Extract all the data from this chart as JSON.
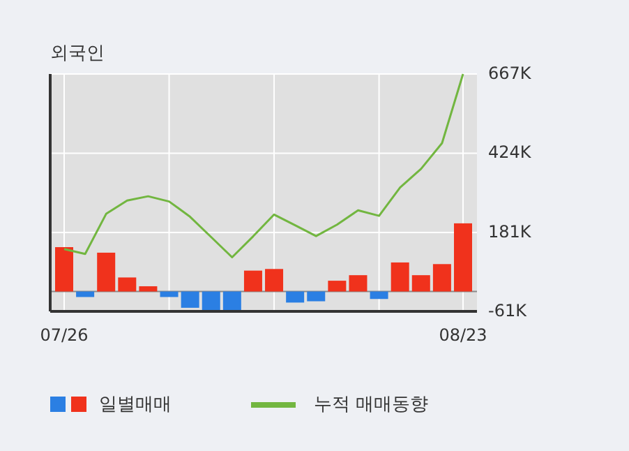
{
  "chart_data": {
    "type": "bar",
    "title": "외국인",
    "categories": [
      "07/26",
      null,
      null,
      null,
      null,
      null,
      null,
      null,
      null,
      null,
      null,
      null,
      null,
      null,
      null,
      null,
      null,
      null,
      null,
      "08/23"
    ],
    "series": [
      {
        "name": "일별매매",
        "colors": [
          "#f0321c",
          "#2b7fe3",
          "#f0321c",
          "#f0321c",
          "#f0321c",
          "#2b7fe3",
          "#2b7fe3",
          "#2b7fe3",
          "#2b7fe3",
          "#f0321c",
          "#f0321c",
          "#2b7fe3",
          "#2b7fe3",
          "#f0321c",
          "#f0321c",
          "#2b7fe3",
          "#f0321c",
          "#f0321c",
          "#f0321c",
          "#f0321c"
        ],
        "values": [
          136,
          -17,
          119,
          43,
          16,
          -17,
          -50,
          -61,
          -61,
          64,
          69,
          -34,
          -30,
          33,
          50,
          -23,
          89,
          50,
          84,
          209
        ]
      },
      {
        "name": "누적 매매동향",
        "type": "line",
        "color": "#72b640",
        "values": [
          130,
          115,
          238,
          279,
          292,
          276,
          229,
          167,
          105,
          169,
          236,
          203,
          170,
          205,
          249,
          232,
          319,
          376,
          455,
          667
        ]
      }
    ],
    "ylim": [
      -61,
      667
    ],
    "yticks": [
      {
        "value": -61,
        "label": "-61K"
      },
      {
        "value": 181,
        "label": "181K"
      },
      {
        "value": 424,
        "label": "424K"
      },
      {
        "value": 667,
        "label": "667K"
      }
    ],
    "grid": true,
    "legend": "bottom left",
    "marker": "none",
    "line_style": "solid"
  }
}
